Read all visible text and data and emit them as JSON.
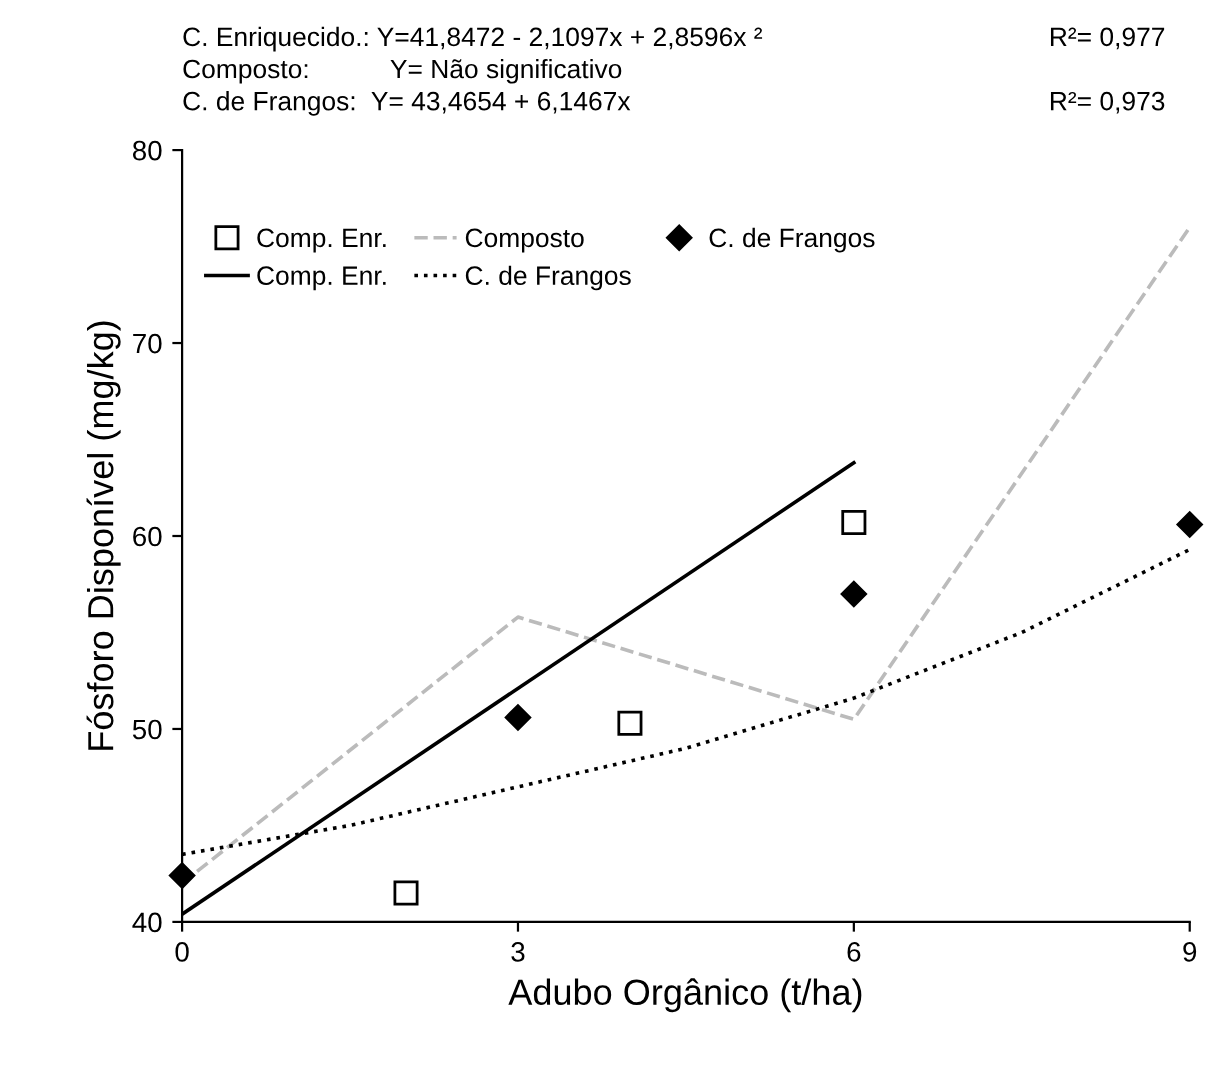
{
  "chart_data": {
    "type": "scatter",
    "xlabel": "Adubo Orgânico (t/ha)",
    "ylabel": "Fósforo Disponível (mg/kg)",
    "annotations": [
      "C. Enriquecido.: Y=41,8472 - 2,1097x + 2,8596x ²",
      "R²= 0,977",
      "Composto:           Y= Não significativo",
      "C. de Frangos:  Y= 43,4654 + 6,1467x",
      "R²= 0,973"
    ],
    "xlim": [
      0,
      9
    ],
    "xticks": [
      0,
      3,
      6,
      9
    ],
    "ylim": [
      40,
      80
    ],
    "yticks": [
      40,
      50,
      60,
      70,
      80
    ],
    "grid": false,
    "legend": "top left",
    "series": [
      {
        "name": "Comp. Enr.",
        "type": "scatter",
        "marker": "square",
        "color": "#000000",
        "x": [
          2,
          4,
          6
        ],
        "values": [
          41.5,
          50.3,
          60.7
        ]
      },
      {
        "name": "Composto",
        "type": "line",
        "line_style": "dashed",
        "color": "#bbbbbb",
        "x": [
          0,
          3,
          6,
          9
        ],
        "values": [
          42,
          55.8,
          50.5,
          76
        ]
      },
      {
        "name": "C. de Frangos",
        "type": "scatter",
        "marker": "diamond",
        "color": "#000000",
        "x": [
          0,
          3,
          6,
          9
        ],
        "values": [
          42.4,
          50.6,
          57,
          60.6
        ]
      },
      {
        "name": "Comp. Enr.",
        "type": "line",
        "line_style": "solid",
        "color": "#000000",
        "x": [
          0,
          6
        ],
        "values": [
          40.4,
          63.8
        ]
      },
      {
        "name": "C. de Frangos",
        "type": "line",
        "line_style": "dotted",
        "color": "#000000",
        "x": [
          0,
          1.5,
          3,
          4.5,
          6,
          7.5,
          9
        ],
        "values": [
          43.5,
          45,
          47,
          49,
          51.6,
          55,
          59.3
        ]
      }
    ]
  }
}
